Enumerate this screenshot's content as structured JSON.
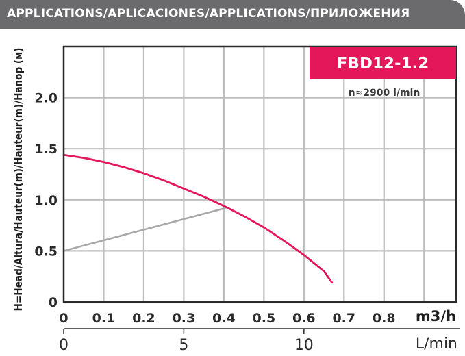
{
  "header": {
    "title": "APPLICATIONS/APLICACIONES/APPLICATIONS/ПРИЛОЖЕНИЯ"
  },
  "colors": {
    "header_bg": "#6b6b6d",
    "accent": "#e3175a",
    "grid": "#bdbdbd",
    "system_line": "#a7a7a7",
    "text": "#2b2b2b"
  },
  "chart_data": {
    "type": "line",
    "model_label": "FBD12-1.2",
    "speed_label": "n≈2900 l/min",
    "ylabel": "H=Head/Altura/Hauteur(m)/Hauteur(m)/Напор (м)",
    "xlabel": "m3/h",
    "xlabel_secondary": "L/min",
    "xlim": [
      0,
      0.98
    ],
    "ylim": [
      0,
      2.5
    ],
    "x_ticks": [
      "0",
      "0.1",
      "0.2",
      "0.3",
      "0.4",
      "0.5",
      "0.6",
      "0.7",
      "0.8"
    ],
    "x_tick_values": [
      0,
      0.1,
      0.2,
      0.3,
      0.4,
      0.5,
      0.6,
      0.7,
      0.8
    ],
    "x2_ticks": [
      "0",
      "5",
      "10"
    ],
    "x2_tick_values_lmin": [
      0,
      5,
      10
    ],
    "y_ticks": [
      "0",
      "0.5",
      "1.0",
      "1.5",
      "2.0"
    ],
    "y_tick_values": [
      0,
      0.5,
      1.0,
      1.5,
      2.0
    ],
    "grid": true,
    "series": [
      {
        "x": [
          0,
          0.05,
          0.1,
          0.15,
          0.2,
          0.25,
          0.3,
          0.35,
          0.4,
          0.45,
          0.5,
          0.55,
          0.6,
          0.65,
          0.67
        ],
        "y": [
          1.44,
          1.41,
          1.37,
          1.32,
          1.26,
          1.19,
          1.11,
          1.03,
          0.94,
          0.84,
          0.73,
          0.6,
          0.46,
          0.3,
          0.19
        ]
      },
      {
        "x": [
          0,
          0.405
        ],
        "y": [
          0.5,
          0.92
        ]
      }
    ]
  }
}
